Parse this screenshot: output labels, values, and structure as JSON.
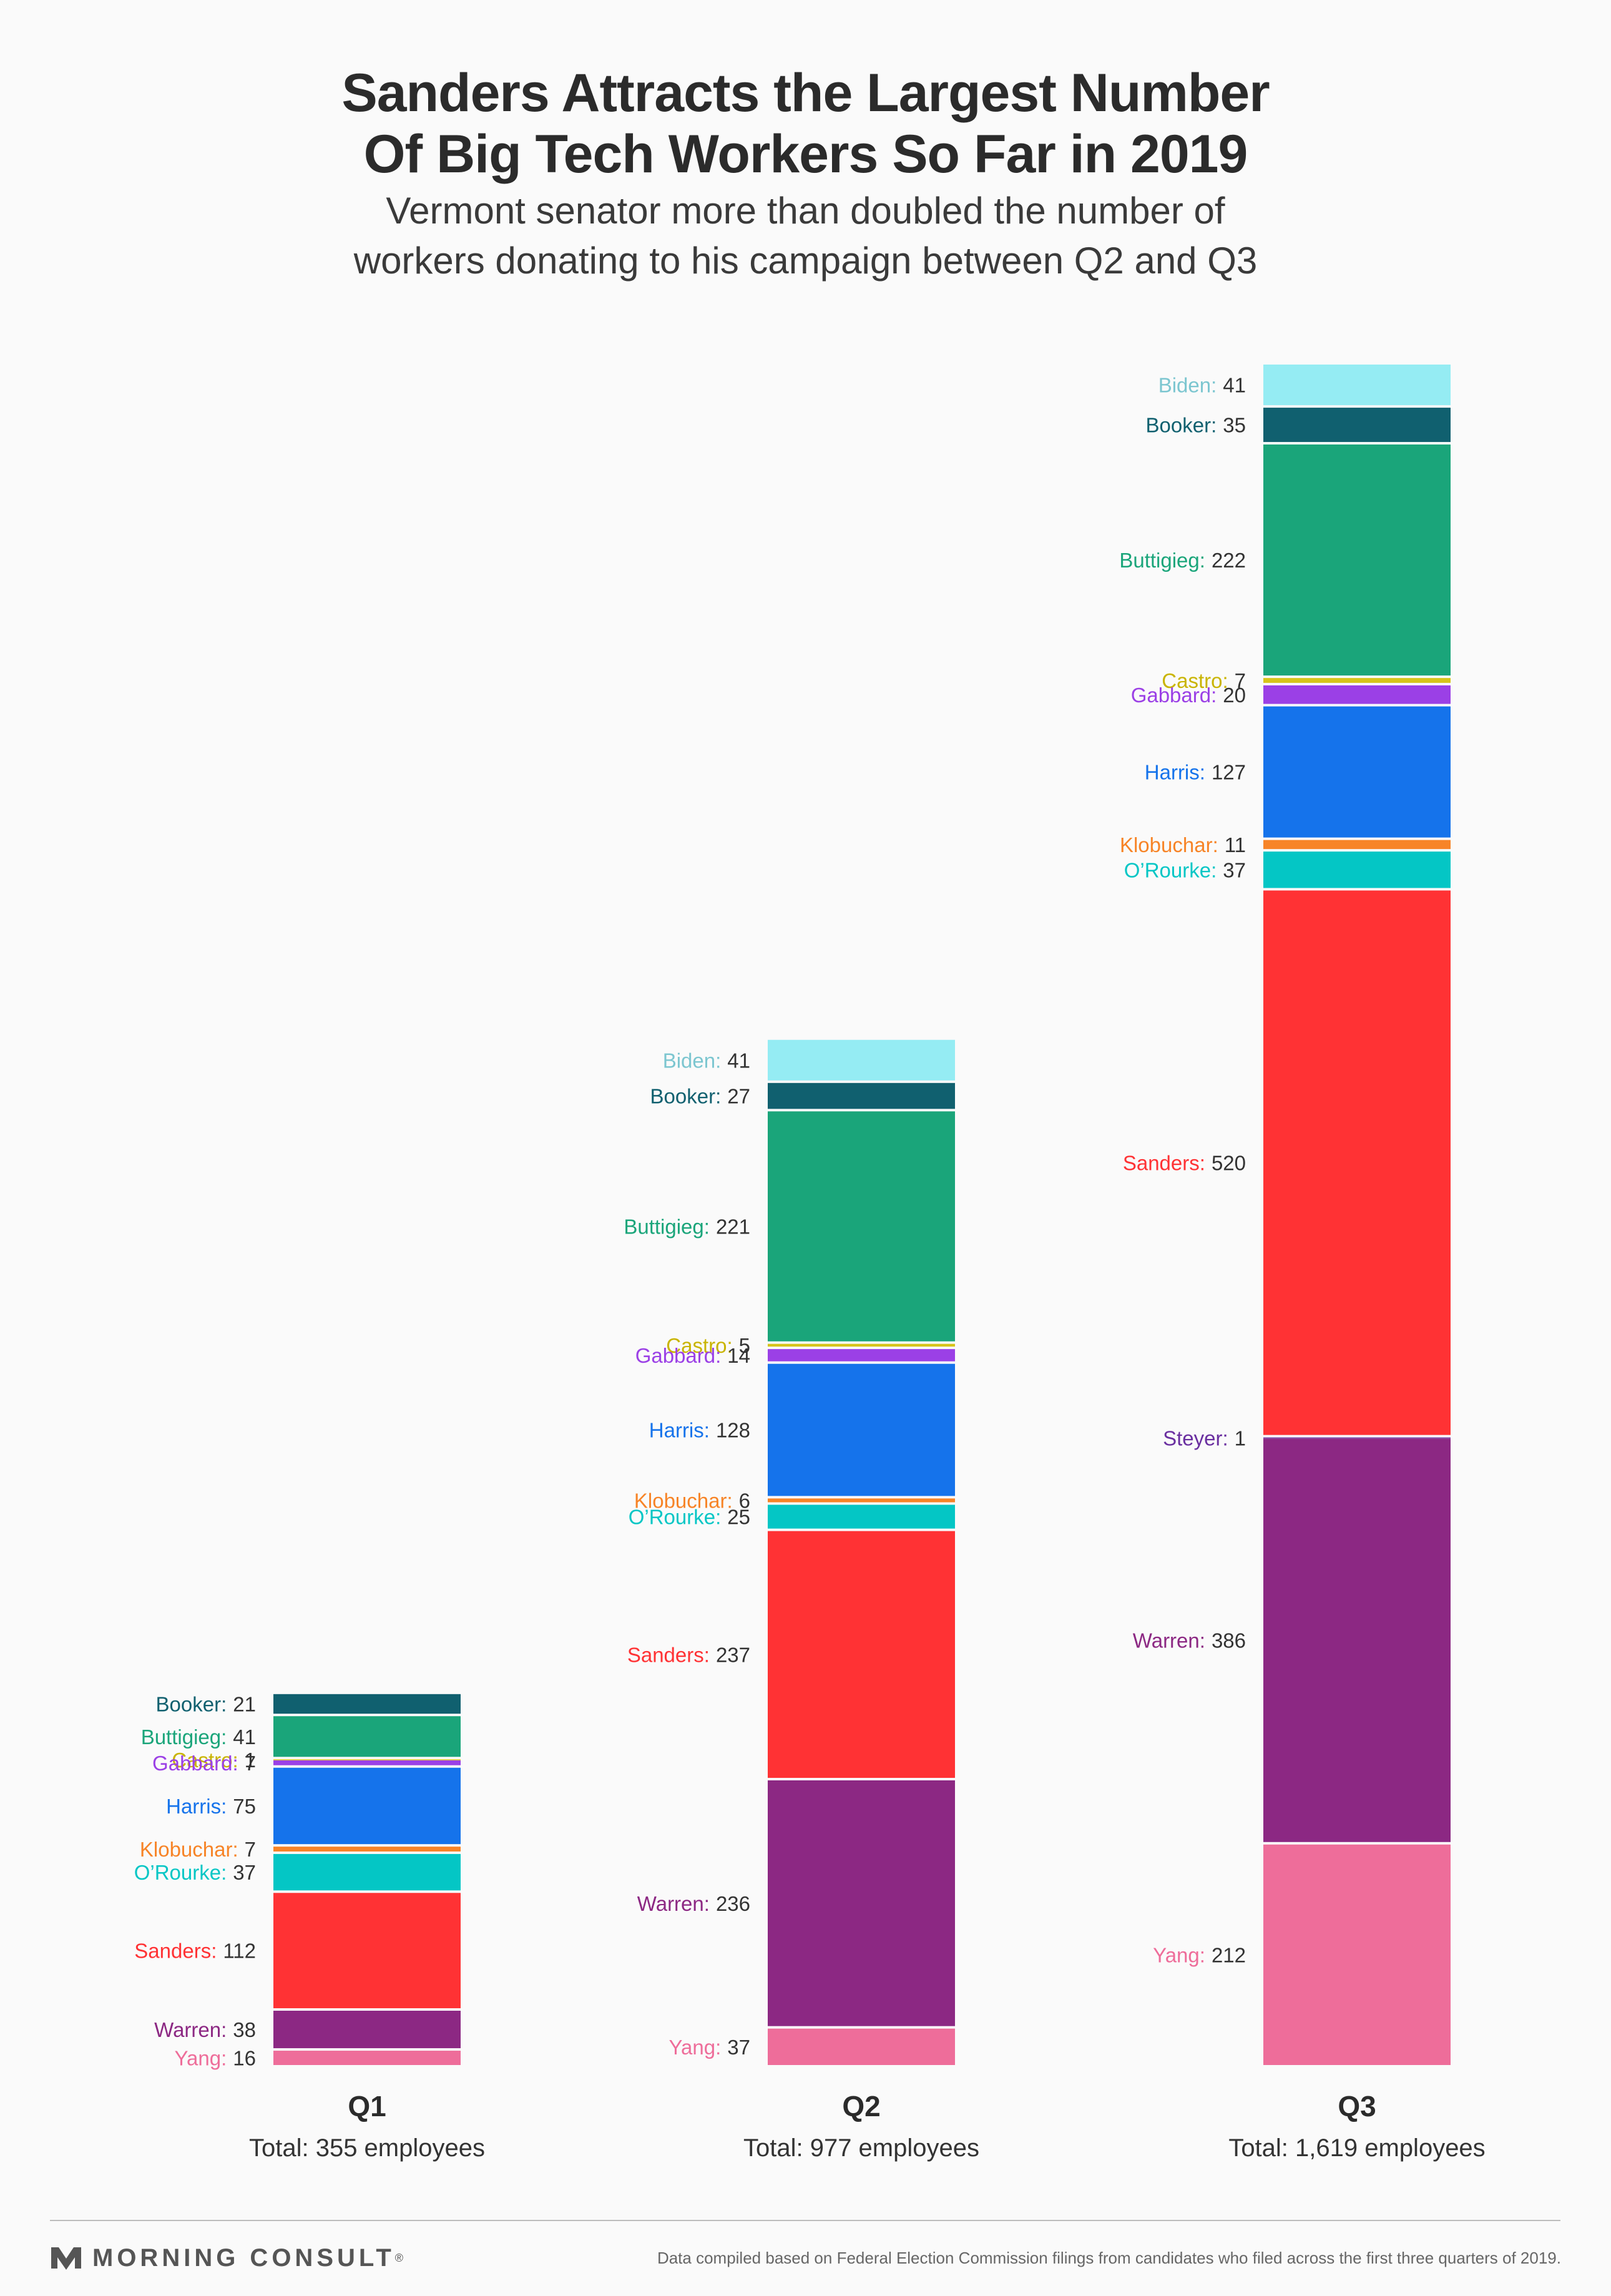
{
  "title_line1": "Sanders Attracts the Largest Number",
  "title_line2": "Of Big Tech Workers So Far in 2019",
  "subtitle_line1": "Vermont senator more than doubled the number of",
  "subtitle_line2": "workers donating to his campaign between Q2 and Q3",
  "brand": {
    "name": "MORNING CONSULT",
    "reg": "®"
  },
  "footnote": "Data compiled based on Federal Election Commission filings from candidates who filed across the first three quarters of 2019.",
  "colors": {
    "Biden": "#95ecf3",
    "Booker": "#10606f",
    "Buttigieg": "#1aa57a",
    "Castro": "#d7c41a",
    "Gabbard": "#9b40e6",
    "Harris": "#1573eb",
    "Klobuchar": "#f78427",
    "O'Rourke": "#04c6c5",
    "Sanders": "#ff3234",
    "Steyer": "#6a2fa0",
    "Warren": "#8c2883",
    "Yang": "#ee6d9a"
  },
  "label_colors": {
    "Biden": "#7cc6d0",
    "Castro": "#c9b400"
  },
  "chart_data": {
    "type": "bar",
    "stacked": true,
    "categories": [
      "Q1",
      "Q2",
      "Q3"
    ],
    "totals": [
      "Total: 355 employees",
      "Total: 977 employees",
      "Total: 1,619 employees"
    ],
    "stacks": [
      {
        "category": "Q1",
        "segments": [
          {
            "name": "Booker",
            "display": "Booker",
            "value": 21
          },
          {
            "name": "Buttigieg",
            "display": "Buttigieg",
            "value": 41
          },
          {
            "name": "Castro",
            "display": "Castro",
            "value": 1
          },
          {
            "name": "Gabbard",
            "display": "Gabbard",
            "value": 7
          },
          {
            "name": "Harris",
            "display": "Harris",
            "value": 75
          },
          {
            "name": "Klobuchar",
            "display": "Klobuchar",
            "value": 7
          },
          {
            "name": "O'Rourke",
            "display": "O’Rourke",
            "value": 37
          },
          {
            "name": "Sanders",
            "display": "Sanders",
            "value": 112
          },
          {
            "name": "Warren",
            "display": "Warren",
            "value": 38
          },
          {
            "name": "Yang",
            "display": "Yang",
            "value": 16
          }
        ]
      },
      {
        "category": "Q2",
        "segments": [
          {
            "name": "Biden",
            "display": "Biden",
            "value": 41
          },
          {
            "name": "Booker",
            "display": "Booker",
            "value": 27
          },
          {
            "name": "Buttigieg",
            "display": "Buttigieg",
            "value": 221
          },
          {
            "name": "Castro",
            "display": "Castro",
            "value": 5
          },
          {
            "name": "Gabbard",
            "display": "Gabbard",
            "value": 14
          },
          {
            "name": "Harris",
            "display": "Harris",
            "value": 128
          },
          {
            "name": "Klobuchar",
            "display": "Klobuchar",
            "value": 6
          },
          {
            "name": "O'Rourke",
            "display": "O’Rourke",
            "value": 25
          },
          {
            "name": "Sanders",
            "display": "Sanders",
            "value": 237
          },
          {
            "name": "Warren",
            "display": "Warren",
            "value": 236
          },
          {
            "name": "Yang",
            "display": "Yang",
            "value": 37
          }
        ]
      },
      {
        "category": "Q3",
        "segments": [
          {
            "name": "Biden",
            "display": "Biden",
            "value": 41
          },
          {
            "name": "Booker",
            "display": "Booker",
            "value": 35
          },
          {
            "name": "Buttigieg",
            "display": "Buttigieg",
            "value": 222
          },
          {
            "name": "Castro",
            "display": "Castro",
            "value": 7
          },
          {
            "name": "Gabbard",
            "display": "Gabbard",
            "value": 20
          },
          {
            "name": "Harris",
            "display": "Harris",
            "value": 127
          },
          {
            "name": "Klobuchar",
            "display": "Klobuchar",
            "value": 11
          },
          {
            "name": "O'Rourke",
            "display": "O’Rourke",
            "value": 37
          },
          {
            "name": "Sanders",
            "display": "Sanders",
            "value": 520
          },
          {
            "name": "Steyer",
            "display": "Steyer",
            "value": 1
          },
          {
            "name": "Warren",
            "display": "Warren",
            "value": 386
          },
          {
            "name": "Yang",
            "display": "Yang",
            "value": 212
          }
        ]
      }
    ]
  }
}
